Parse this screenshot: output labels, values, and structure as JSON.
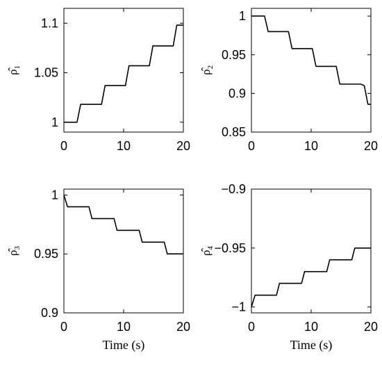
{
  "chart_data": [
    {
      "type": "line",
      "ylabel": "ρ̂1",
      "ylabel_base": "ρ̂",
      "ylabel_sub": "1",
      "xlabel": "",
      "xlim": [
        0,
        20
      ],
      "ylim": [
        0.99,
        1.115
      ],
      "xticks": [
        "0",
        "10",
        "20"
      ],
      "yticks": [
        "1",
        "1.05",
        "1.1"
      ],
      "x": [
        0,
        2.2,
        2.8,
        6.3,
        6.9,
        10.3,
        10.9,
        14.3,
        14.9,
        18.3,
        18.9,
        20
      ],
      "y": [
        1.0,
        1.0,
        1.018,
        1.018,
        1.037,
        1.037,
        1.057,
        1.057,
        1.077,
        1.077,
        1.098,
        1.098
      ]
    },
    {
      "type": "line",
      "ylabel": "ρ̂2",
      "ylabel_base": "ρ̂",
      "ylabel_sub": "2",
      "xlabel": "",
      "xlim": [
        0,
        20
      ],
      "ylim": [
        0.85,
        1.01
      ],
      "xticks": [
        "0",
        "10",
        "20"
      ],
      "yticks": [
        "0.85",
        "0.9",
        "0.95",
        "1"
      ],
      "x": [
        0,
        2.2,
        2.8,
        6.2,
        6.8,
        10.2,
        10.8,
        14.2,
        14.8,
        18.3,
        18.9,
        19.5,
        20
      ],
      "y": [
        1.0,
        1.0,
        0.98,
        0.98,
        0.958,
        0.958,
        0.935,
        0.935,
        0.912,
        0.912,
        0.91,
        0.886,
        0.886
      ]
    },
    {
      "type": "line",
      "ylabel": "ρ̂3",
      "ylabel_base": "ρ̂",
      "ylabel_sub": "3",
      "xlabel": "Time (s)",
      "xlim": [
        0,
        20
      ],
      "ylim": [
        0.9,
        1.005
      ],
      "xticks": [
        "0",
        "10",
        "20"
      ],
      "yticks": [
        "0.9",
        "0.95",
        "1"
      ],
      "x": [
        0,
        0.6,
        4.2,
        4.7,
        8.4,
        8.9,
        12.6,
        13.1,
        16.8,
        17.3,
        20
      ],
      "y": [
        1.0,
        0.99,
        0.99,
        0.98,
        0.98,
        0.97,
        0.97,
        0.96,
        0.96,
        0.95,
        0.95
      ]
    },
    {
      "type": "line",
      "ylabel": "ρ̂4",
      "ylabel_base": "ρ̂",
      "ylabel_sub": "4",
      "xlabel": "Time (s)",
      "xlim": [
        0,
        20
      ],
      "ylim": [
        -1.005,
        -0.9
      ],
      "xticks": [
        "0",
        "10",
        "20"
      ],
      "yticks": [
        "-1",
        "-0.95",
        "-0.9"
      ],
      "x": [
        0,
        0.6,
        4.2,
        4.7,
        8.4,
        8.9,
        12.6,
        13.1,
        16.8,
        17.3,
        20
      ],
      "y": [
        -1.0,
        -0.99,
        -0.99,
        -0.98,
        -0.98,
        -0.97,
        -0.97,
        -0.96,
        -0.96,
        -0.95,
        -0.95
      ]
    }
  ]
}
